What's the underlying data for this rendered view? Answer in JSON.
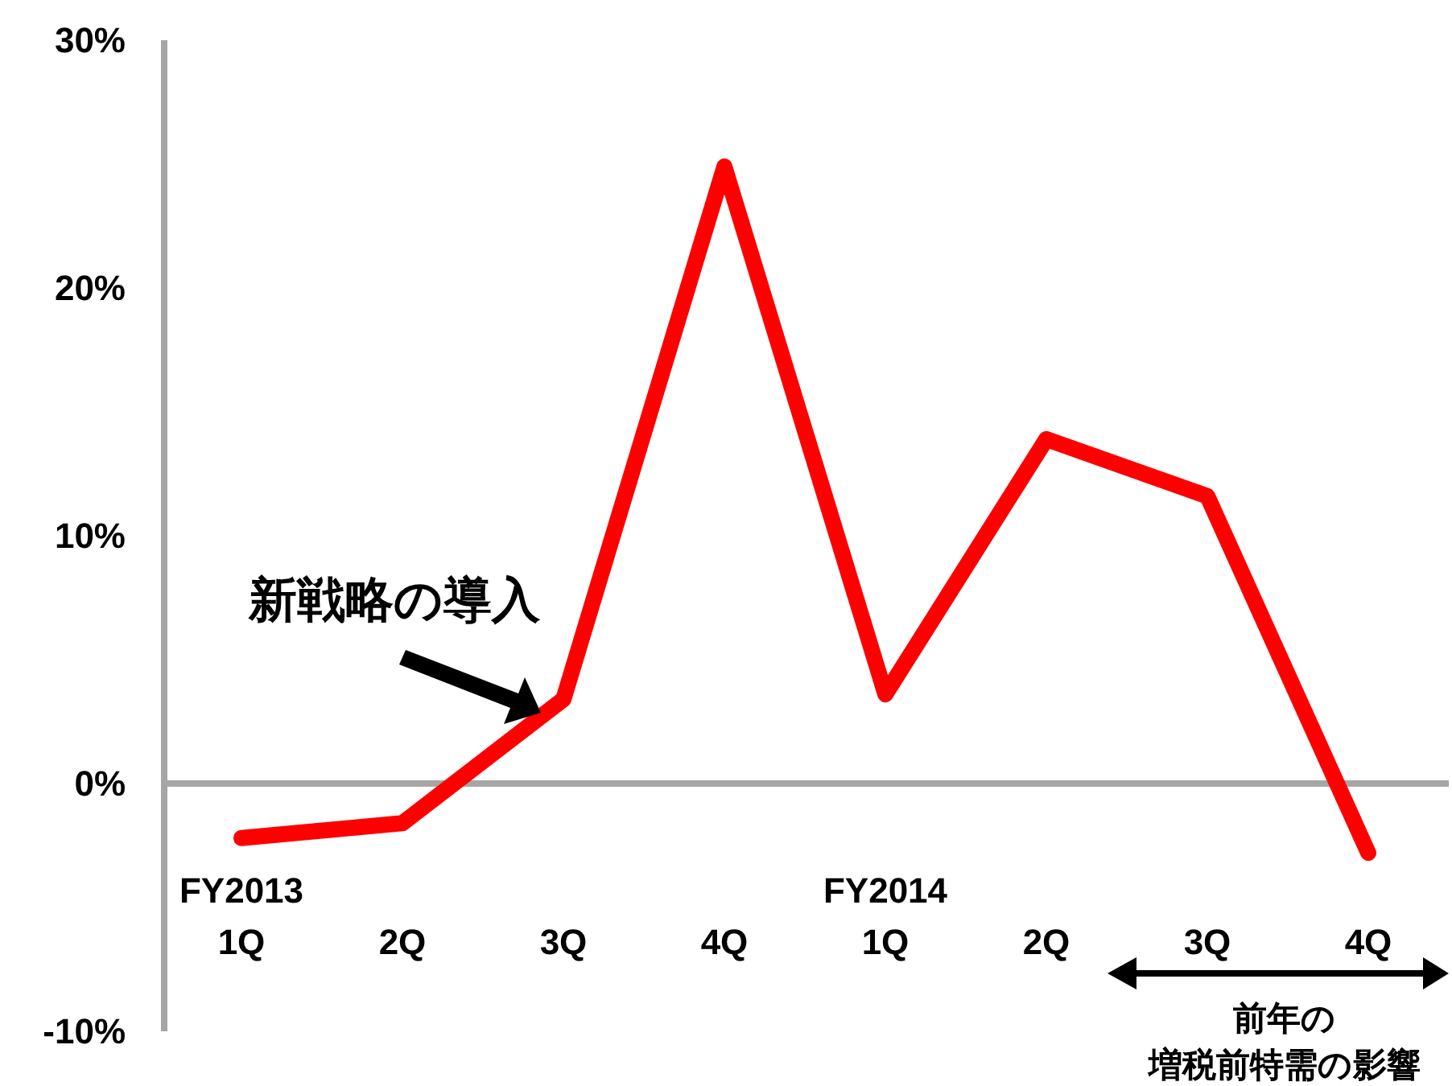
{
  "chart_data": {
    "type": "line",
    "categories": [
      "FY2013 1Q",
      "2Q",
      "3Q",
      "4Q",
      "FY2014 1Q",
      "2Q",
      "3Q",
      "4Q"
    ],
    "series": [
      {
        "color": "#ff0000",
        "values": [
          -2.2,
          -1.6,
          3.4,
          24.9,
          3.6,
          13.9,
          11.6,
          -2.8
        ]
      }
    ],
    "ylim": [
      -10,
      30
    ],
    "yticks": [
      {
        "value": -10,
        "label": "-10%"
      },
      {
        "value": 0,
        "label": "0%"
      },
      {
        "value": 10,
        "label": "10%"
      },
      {
        "value": 20,
        "label": "20%"
      },
      {
        "value": 30,
        "label": "30%"
      }
    ],
    "grid": false,
    "marker": "none",
    "line_style": "solid",
    "annotations": [
      "新戦略の導入",
      "前年の",
      "増税前特需の影響"
    ]
  }
}
